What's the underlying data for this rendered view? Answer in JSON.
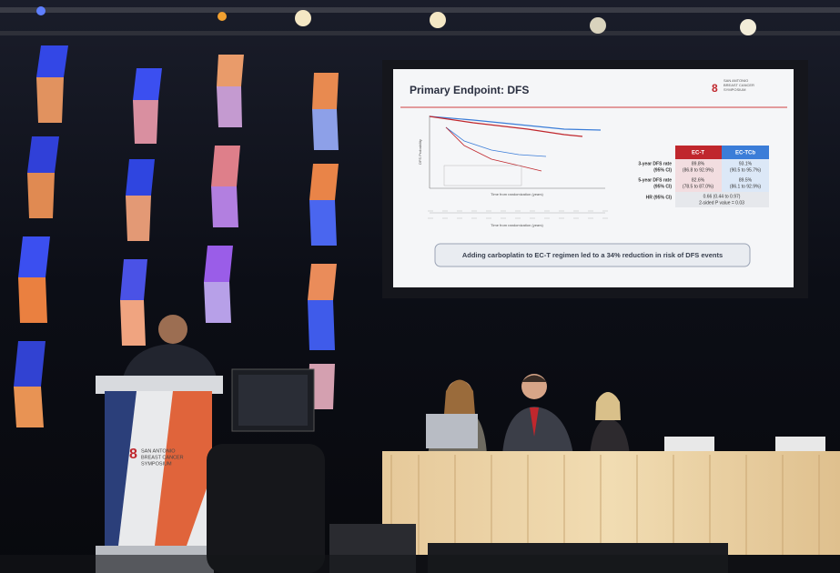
{
  "slide": {
    "title": "Primary Endpoint: DFS",
    "logo": [
      "SAN ANTONIO",
      "BREAST CANCER",
      "SYMPOSIUM"
    ],
    "x_axis_label": "Time from randomization (years)",
    "y_axis_label": "DFS Probability",
    "table": {
      "columns": [
        "EC-T",
        "EC-TCb"
      ],
      "rows": [
        {
          "label": [
            "3-year DFS rate",
            "(95% CI)"
          ],
          "cells": [
            [
              "89.8%",
              "(86.8 to 92.9%)"
            ],
            [
              "93.1%",
              "(90.5 to 95.7%)"
            ]
          ]
        },
        {
          "label": [
            "5-year DFS rate",
            "(95% CI)"
          ],
          "cells": [
            [
              "82.6%",
              "(78.5 to 87.0%)"
            ],
            [
              "89.5%",
              "(86.1 to 92.9%)"
            ]
          ]
        }
      ],
      "hr": {
        "label": "HR (95% CI)",
        "value": "0.66 (0.44 to 0.97)",
        "p": "2-sided P value = 0.03"
      }
    },
    "banner": "Adding carboplatin to EC-T regimen led to a 34% reduction in risk of DFS events"
  },
  "podium_sign": [
    "SAN ANTONIO",
    "BREAST CANCER",
    "SYMPOSIUM"
  ]
}
